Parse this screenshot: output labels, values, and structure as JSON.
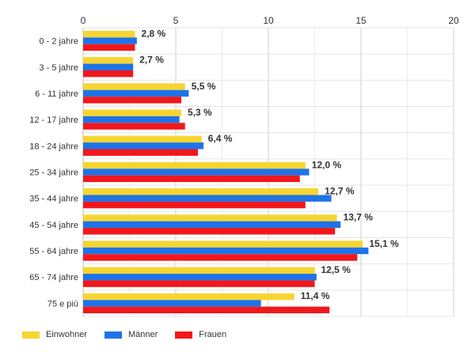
{
  "chart_data": {
    "type": "bar",
    "orientation": "horizontal",
    "xlim": [
      0,
      20
    ],
    "xticks": [
      "0",
      "5",
      "10",
      "15",
      "20"
    ],
    "grid": true,
    "legend_position": "bottom-left",
    "categories": [
      "0 - 2 jahre",
      "3 - 5 jahre",
      "6 - 11 jahre",
      "12 - 17 jahre",
      "18 - 24 jahre",
      "25 - 34 jahre",
      "35 - 44 jahre",
      "45 - 54 jahre",
      "55 - 64 jahre",
      "65 - 74 jahre",
      "75 e più"
    ],
    "series": [
      {
        "name": "Einwohner",
        "color": "#f7d531",
        "values": [
          2.8,
          2.7,
          5.5,
          5.3,
          6.4,
          12.0,
          12.7,
          13.7,
          15.1,
          12.5,
          11.4
        ]
      },
      {
        "name": "Männer",
        "color": "#1e73e8",
        "values": [
          2.9,
          2.7,
          5.7,
          5.2,
          6.5,
          12.2,
          13.4,
          13.9,
          15.4,
          12.6,
          9.6
        ]
      },
      {
        "name": "Frauen",
        "color": "#f2171b",
        "values": [
          2.8,
          2.7,
          5.3,
          5.5,
          6.2,
          11.7,
          12.0,
          13.6,
          14.8,
          12.5,
          13.3
        ]
      }
    ],
    "data_labels": [
      "2,8 %",
      "2,7 %",
      "5,5 %",
      "5,3 %",
      "6,4 %",
      "12,0 %",
      "12,7 %",
      "13,7 %",
      "15,1 %",
      "12,5 %",
      "11,4 %"
    ]
  }
}
